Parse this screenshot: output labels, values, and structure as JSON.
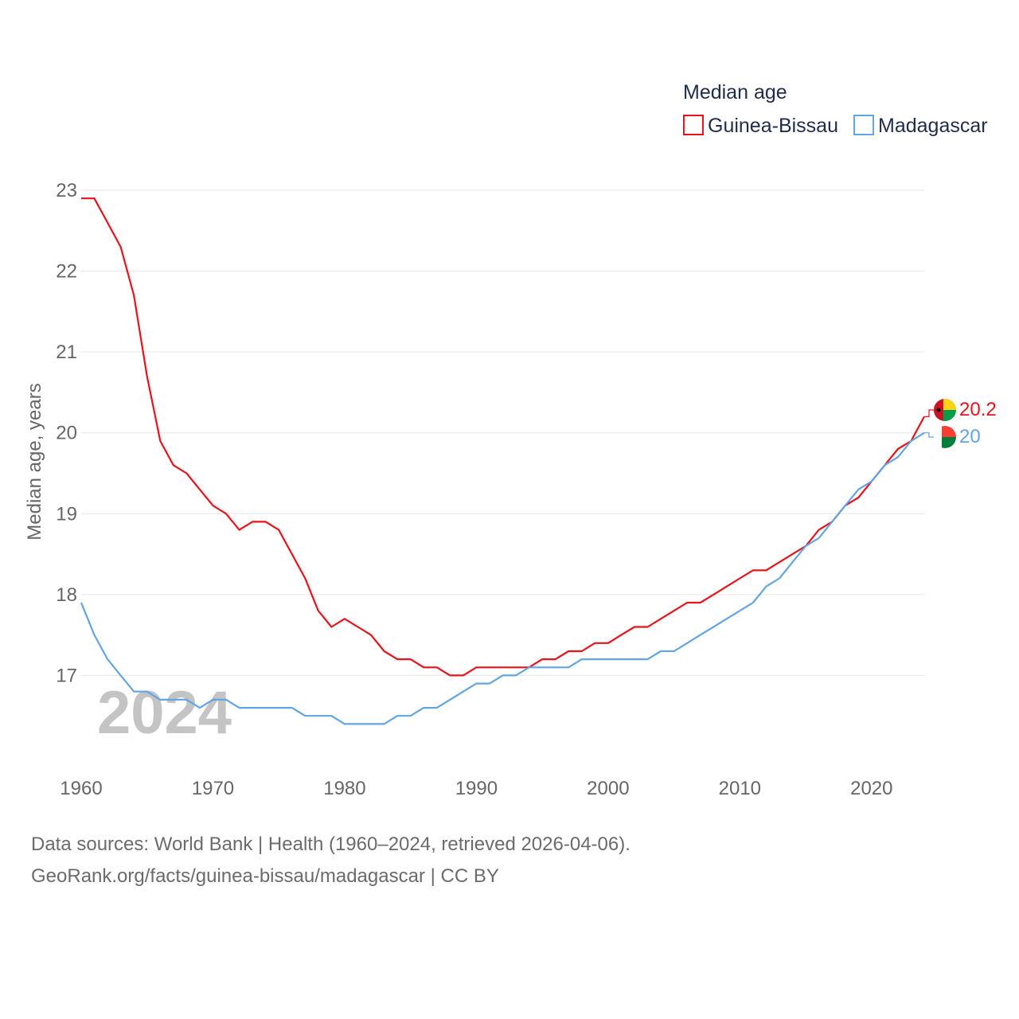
{
  "chart_data": {
    "type": "line",
    "legend_title": "Median age",
    "ylabel": "Median age, years",
    "year_label": "2024",
    "x_range": [
      1960,
      2024
    ],
    "ylim": [
      16,
      23
    ],
    "x_ticks": [
      1960,
      1970,
      1980,
      1990,
      2000,
      2010,
      2020
    ],
    "y_ticks": [
      17,
      18,
      19,
      20,
      21,
      22,
      23
    ],
    "grid": true,
    "legend_position": "top-right",
    "series": [
      {
        "name": "Guinea-Bissau",
        "color": "#e8131a",
        "end_label": "20.2",
        "flag_icon": "guinea-bissau-flag-icon",
        "x": [
          1960,
          1961,
          1962,
          1963,
          1964,
          1965,
          1966,
          1967,
          1968,
          1969,
          1970,
          1971,
          1972,
          1973,
          1974,
          1975,
          1976,
          1977,
          1978,
          1979,
          1980,
          1981,
          1982,
          1983,
          1984,
          1985,
          1986,
          1987,
          1988,
          1989,
          1990,
          1991,
          1992,
          1993,
          1994,
          1995,
          1996,
          1997,
          1998,
          1999,
          2000,
          2001,
          2002,
          2003,
          2004,
          2005,
          2006,
          2007,
          2008,
          2009,
          2010,
          2011,
          2012,
          2013,
          2014,
          2015,
          2016,
          2017,
          2018,
          2019,
          2020,
          2021,
          2022,
          2023,
          2024
        ],
        "values": [
          22.9,
          22.9,
          22.6,
          22.3,
          21.7,
          20.7,
          19.9,
          19.6,
          19.5,
          19.3,
          19.1,
          19.0,
          18.8,
          18.9,
          18.9,
          18.8,
          18.5,
          18.2,
          17.8,
          17.6,
          17.7,
          17.6,
          17.5,
          17.3,
          17.2,
          17.2,
          17.1,
          17.1,
          17.0,
          17.0,
          17.1,
          17.1,
          17.1,
          17.1,
          17.1,
          17.2,
          17.2,
          17.3,
          17.3,
          17.4,
          17.4,
          17.5,
          17.6,
          17.6,
          17.7,
          17.8,
          17.9,
          17.9,
          18.0,
          18.1,
          18.2,
          18.3,
          18.3,
          18.4,
          18.5,
          18.6,
          18.8,
          18.9,
          19.1,
          19.2,
          19.4,
          19.6,
          19.8,
          19.9,
          20.2
        ]
      },
      {
        "name": "Madagascar",
        "color": "#63a4e3",
        "end_label": "20",
        "flag_icon": "madagascar-flag-icon",
        "x": [
          1960,
          1961,
          1962,
          1963,
          1964,
          1965,
          1966,
          1967,
          1968,
          1969,
          1970,
          1971,
          1972,
          1973,
          1974,
          1975,
          1976,
          1977,
          1978,
          1979,
          1980,
          1981,
          1982,
          1983,
          1984,
          1985,
          1986,
          1987,
          1988,
          1989,
          1990,
          1991,
          1992,
          1993,
          1994,
          1995,
          1996,
          1997,
          1998,
          1999,
          2000,
          2001,
          2002,
          2003,
          2004,
          2005,
          2006,
          2007,
          2008,
          2009,
          2010,
          2011,
          2012,
          2013,
          2014,
          2015,
          2016,
          2017,
          2018,
          2019,
          2020,
          2021,
          2022,
          2023,
          2024
        ],
        "values": [
          17.9,
          17.5,
          17.2,
          17.0,
          16.8,
          16.8,
          16.7,
          16.7,
          16.7,
          16.6,
          16.7,
          16.7,
          16.6,
          16.6,
          16.6,
          16.6,
          16.6,
          16.5,
          16.5,
          16.5,
          16.4,
          16.4,
          16.4,
          16.4,
          16.5,
          16.5,
          16.6,
          16.6,
          16.7,
          16.8,
          16.9,
          16.9,
          17.0,
          17.0,
          17.1,
          17.1,
          17.1,
          17.1,
          17.2,
          17.2,
          17.2,
          17.2,
          17.2,
          17.2,
          17.3,
          17.3,
          17.4,
          17.5,
          17.6,
          17.7,
          17.8,
          17.9,
          18.1,
          18.2,
          18.4,
          18.6,
          18.7,
          18.9,
          19.1,
          19.3,
          19.4,
          19.6,
          19.7,
          19.9,
          20.0
        ]
      }
    ]
  },
  "source": {
    "line1": "Data sources: World Bank | Health (1960–2024, retrieved 2026-04-06).",
    "line2": "GeoRank.org/facts/guinea-bissau/madagascar | CC BY"
  }
}
